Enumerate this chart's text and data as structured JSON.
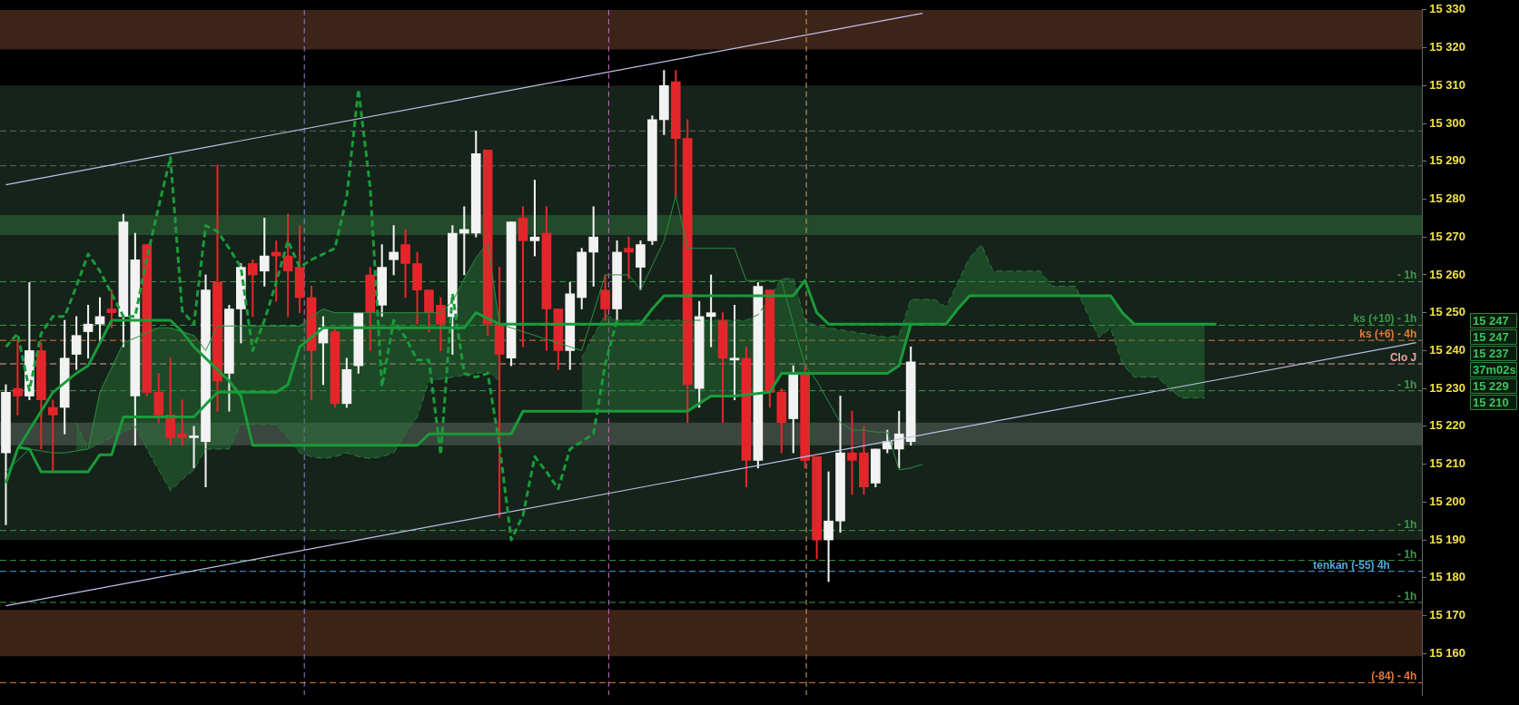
{
  "chart_data": {
    "type": "candlestick",
    "categories": [
      null,
      null,
      null,
      null,
      null,
      null,
      null,
      null,
      null,
      null,
      null,
      null,
      null,
      null,
      null,
      null,
      null,
      null,
      null,
      null,
      null,
      null,
      null,
      null,
      null,
      null,
      null,
      null,
      null,
      null,
      null,
      null,
      null,
      null,
      null,
      null,
      null,
      null,
      null,
      null,
      null,
      null,
      null,
      null,
      null,
      null,
      null,
      null,
      null,
      null,
      null,
      null,
      null,
      null,
      null,
      null,
      null,
      null,
      null,
      null,
      null,
      null,
      null,
      null,
      null,
      null,
      null,
      null,
      null,
      null,
      null,
      null,
      null,
      null,
      null,
      null,
      null,
      null,
      null,
      null,
      null,
      null,
      null,
      null,
      null,
      null,
      null,
      null,
      null,
      null,
      null,
      null,
      null,
      null,
      null,
      null,
      null,
      null,
      null,
      null,
      null,
      null,
      null,
      null,
      null,
      null,
      null,
      null,
      null,
      null,
      null,
      null,
      null,
      null,
      null,
      null,
      null,
      null,
      null,
      null,
      null
    ],
    "ohlc": [
      [
        15213,
        15231,
        15194,
        15229
      ],
      [
        15230,
        15243,
        15223,
        15228
      ],
      [
        15228,
        15258,
        15227,
        15240
      ],
      [
        15240,
        15242,
        15214,
        15227
      ],
      [
        15225,
        15227,
        15208,
        15223
      ],
      [
        15225,
        15248,
        15218,
        15238
      ],
      [
        15239,
        15249,
        15235,
        15244
      ],
      [
        15245,
        15252,
        15238,
        15247
      ],
      [
        15247,
        15254,
        15242,
        15249
      ],
      [
        15251,
        15256,
        15246,
        15250
      ],
      [
        15249,
        15276,
        15241,
        15274
      ],
      [
        15228,
        15271,
        15215,
        15264
      ],
      [
        15268,
        15268,
        15228,
        15229
      ],
      [
        15229,
        15234,
        15221,
        15223
      ],
      [
        15223,
        15238,
        15215,
        15217
      ],
      [
        15218,
        15227,
        15215,
        15217
      ],
      [
        15217,
        15220,
        15209,
        15217.5
      ],
      [
        15216,
        15260,
        15204,
        15256
      ],
      [
        15258,
        15289,
        15224,
        15232
      ],
      [
        15234,
        15252,
        15224,
        15251
      ],
      [
        15251,
        15263,
        15242,
        15262
      ],
      [
        15263,
        15264,
        15249,
        15260
      ],
      [
        15261,
        15275,
        15257,
        15265
      ],
      [
        15266,
        15269,
        15253,
        15265
      ],
      [
        15265,
        15276,
        15249,
        15261
      ],
      [
        15262,
        15273,
        15250,
        15254
      ],
      [
        15254,
        15257,
        15227,
        15240
      ],
      [
        15242,
        15249,
        15231,
        15246
      ],
      [
        15245,
        15246,
        15225,
        15226
      ],
      [
        15226,
        15238,
        15225,
        15235
      ],
      [
        15236,
        15250,
        15234,
        15250
      ],
      [
        15260,
        15262,
        15240,
        15250
      ],
      [
        15252,
        15268,
        15249,
        15262
      ],
      [
        15264,
        15273,
        15260,
        15266
      ],
      [
        15268,
        15272,
        15254,
        15263
      ],
      [
        15263,
        15266,
        15247,
        15256
      ],
      [
        15256,
        15256,
        15245,
        15250
      ],
      [
        15252,
        15254,
        15240,
        15247
      ],
      [
        15249,
        15273,
        15239,
        15271
      ],
      [
        15271,
        15278,
        15260,
        15272
      ],
      [
        15271,
        15298,
        15270,
        15292
      ],
      [
        15293,
        15293,
        15244,
        15247
      ],
      [
        15247,
        15262,
        15196,
        15239
      ],
      [
        15238,
        15274,
        15236,
        15274
      ],
      [
        15275,
        15278,
        15241,
        15269
      ],
      [
        15269,
        15285,
        15265,
        15270
      ],
      [
        15271,
        15278,
        15240,
        15251
      ],
      [
        15251,
        15251,
        15235,
        15240
      ],
      [
        15240,
        15258,
        15235,
        15255
      ],
      [
        15254,
        15267,
        15251,
        15266
      ],
      [
        15266,
        15278,
        15257,
        15270
      ],
      [
        15256,
        15260,
        15248,
        15251
      ],
      [
        15251,
        15269,
        15248,
        15266
      ],
      [
        15267,
        15270,
        15259,
        15266
      ],
      [
        15262,
        15269,
        15256,
        15268
      ],
      [
        15269,
        15302,
        15268,
        15301
      ],
      [
        15301,
        15314,
        15297,
        15310
      ],
      [
        15311,
        15314,
        15281,
        15296
      ],
      [
        15296,
        15301,
        15221,
        15231
      ],
      [
        15230,
        15253,
        15225,
        15249
      ],
      [
        15249,
        15260,
        15241,
        15250
      ],
      [
        15248,
        15250,
        15221,
        15238
      ],
      [
        15237.5,
        15252,
        15227,
        15238
      ],
      [
        15238,
        15241,
        15204,
        15211
      ],
      [
        15211,
        15258,
        15209,
        15257
      ],
      [
        15256,
        15256,
        15225,
        15229
      ],
      [
        15229,
        15230,
        15213,
        15221
      ],
      [
        15222,
        15236,
        15213,
        15234
      ],
      [
        15234,
        15236,
        15209,
        15211
      ],
      [
        15212,
        15212,
        15185,
        15190
      ],
      [
        15190,
        15208,
        15179,
        15195
      ],
      [
        15195,
        15228,
        15192,
        15213
      ],
      [
        15213,
        15224,
        15202,
        15211
      ],
      [
        15213,
        15220,
        15202,
        15204
      ],
      [
        15205,
        15214,
        15204,
        15214
      ],
      [
        15214,
        15219,
        15213,
        15216
      ],
      [
        15214,
        15224,
        15209,
        15218
      ],
      [
        15216,
        15241,
        15215,
        15237
      ],
      null,
      null,
      null,
      null,
      null,
      null,
      null,
      null,
      null,
      null,
      null,
      null,
      null,
      null,
      null,
      null,
      null,
      null,
      null,
      null,
      null,
      null,
      null,
      null,
      null,
      null,
      null,
      null,
      null,
      null,
      null,
      null,
      null,
      null,
      null,
      null,
      null,
      null,
      null,
      null,
      null,
      null,
      null
    ],
    "colors": [
      "#f2f2f2",
      "#e3262b",
      "#f2f2f2",
      "#e3262b",
      "#e3262b",
      "#f2f2f2",
      "#f2f2f2",
      "#f2f2f2",
      "#f2f2f2",
      "#e3262b",
      "#f2f2f2",
      "#f2f2f2",
      "#e3262b",
      "#e3262b",
      "#e3262b",
      "#e3262b",
      "#f2f2f2",
      "#f2f2f2",
      "#e3262b",
      "#f2f2f2",
      "#f2f2f2",
      "#e3262b",
      "#f2f2f2",
      "#e3262b",
      "#e3262b",
      "#e3262b",
      "#e3262b",
      "#f2f2f2",
      "#e3262b",
      "#f2f2f2",
      "#f2f2f2",
      "#e3262b",
      "#f2f2f2",
      "#f2f2f2",
      "#e3262b",
      "#e3262b",
      "#e3262b",
      "#e3262b",
      "#f2f2f2",
      "#f2f2f2",
      "#f2f2f2",
      "#e3262b",
      "#e3262b",
      "#f2f2f2",
      "#e3262b",
      "#f2f2f2",
      "#e3262b",
      "#e3262b",
      "#f2f2f2",
      "#f2f2f2",
      "#f2f2f2",
      "#e3262b",
      "#f2f2f2",
      "#e3262b",
      "#f2f2f2",
      "#f2f2f2",
      "#f2f2f2",
      "#e3262b",
      "#e3262b",
      "#f2f2f2",
      "#f2f2f2",
      "#e3262b",
      "#f2f2f2",
      "#e3262b",
      "#f2f2f2",
      "#e3262b",
      "#e3262b",
      "#f2f2f2",
      "#e3262b",
      "#e3262b",
      "#f2f2f2",
      "#f2f2f2",
      "#e3262b",
      "#e3262b",
      "#f2f2f2",
      "#f2f2f2",
      "#f2f2f2",
      "#f2f2f2",
      null,
      null,
      null,
      null,
      null,
      null,
      null,
      null,
      null,
      null,
      null,
      null,
      null,
      null,
      null,
      null,
      null,
      null,
      null,
      null,
      null,
      null,
      null,
      null,
      null,
      null,
      null,
      null,
      null,
      null,
      null,
      null,
      null,
      null,
      null,
      null,
      null,
      null,
      null,
      null,
      null,
      null,
      null
    ],
    "series": [
      {
        "type": "line",
        "color": "#1a9b3a",
        "values": [
          15205,
          15214,
          15219,
          15224,
          15229,
          null,
          15234,
          15236,
          null,
          15248,
          15248,
          null,
          null,
          15248,
          15248,
          15245,
          15241,
          null,
          null,
          15232,
          15228,
          15215,
          15215,
          15215,
          15215,
          15215,
          15215,
          15215,
          15215,
          15215,
          15215,
          15215,
          15215,
          15215,
          15215,
          15215,
          15218,
          15218,
          15218,
          15218,
          15218,
          15218,
          15218,
          15218,
          15224,
          15224,
          15224,
          15224,
          15224,
          15224,
          15224,
          15224,
          15224,
          15224,
          15224,
          15224,
          15224,
          15224,
          15224,
          15226,
          15228,
          15228,
          15228,
          null,
          null,
          15229,
          15234,
          15234,
          15234,
          15234,
          15234,
          15234,
          15234,
          15234,
          15234,
          15234,
          15236,
          15247,
          15247,
          15247,
          15247,
          15251,
          15254.5,
          15254.5,
          15254.5,
          15254.5,
          15254.5,
          15254.5,
          15254.5,
          15254.5,
          15254.5,
          15254.5,
          15254.5,
          15254.5,
          15254.5,
          15250,
          15247,
          15247,
          15247,
          15247,
          15247,
          15247,
          15247,
          15247,
          null,
          null,
          null,
          null,
          null,
          null,
          null,
          null,
          null,
          null,
          null,
          null,
          null,
          null,
          null,
          null,
          null
        ]
      },
      {
        "type": "line",
        "color": "#1a9b3a",
        "values": [
          null,
          15214.5,
          15214,
          15208,
          15208,
          15208,
          15208,
          15208,
          15212.5,
          15212.5,
          15222.5,
          15222.5,
          15222.5,
          15222.5,
          null,
          15222.5,
          15222.5,
          null,
          15229,
          15229,
          15229,
          15229,
          15229,
          15229,
          15231,
          15241,
          null,
          15246,
          15246,
          15246,
          null,
          15246,
          15246,
          15246,
          15246,
          15246,
          15246,
          15246,
          15246,
          15246,
          15250,
          null,
          15247,
          null,
          15247,
          15247,
          15247,
          null,
          null,
          15247,
          15247,
          15247,
          15247,
          15247,
          15247,
          15251,
          15254.5,
          15254.5,
          null,
          15254.5,
          15254.5,
          15254.5,
          15254.5,
          15254.5,
          null,
          null,
          15254.5,
          15254.5,
          15258.5,
          15250,
          15247,
          15247,
          15247,
          15247,
          15247,
          15247,
          15247,
          15247,
          null,
          null,
          null,
          null,
          null,
          null,
          null,
          null,
          null,
          null,
          null,
          null,
          null,
          null,
          null,
          null,
          null,
          null,
          null,
          null,
          null,
          null,
          null,
          null,
          null,
          null,
          null,
          null,
          null,
          null,
          null,
          null,
          null,
          null,
          null,
          null,
          null,
          null,
          null,
          null,
          null,
          null,
          null
        ]
      },
      {
        "type": "line",
        "color": "#2d8f3f",
        "values": [
          15208,
          15211,
          15214,
          15213.5,
          15213,
          15213,
          15213.5,
          15214,
          15229,
          15235.5,
          15242,
          null,
          null,
          15246,
          15246,
          15245,
          15244,
          15240,
          15246.5,
          15246.5,
          15246.5,
          15246.5,
          15246.5,
          15246.5,
          15246.5,
          15246.5,
          15249,
          15251,
          15250,
          15250,
          15250,
          15250,
          15250,
          15250,
          15250,
          15250,
          15250,
          15250,
          15253,
          15259,
          15264.5,
          15268.5,
          15247,
          15246,
          15245,
          15244,
          15243,
          15242,
          15241,
          15240,
          15250,
          15260,
          15260,
          15260,
          15256,
          15262.5,
          15269,
          15281,
          15267,
          15267,
          15267,
          15267,
          15267,
          15258.5,
          15258.5,
          15258.5,
          15258.5,
          15247,
          15236,
          15232,
          15226.5,
          15221,
          15219,
          15219,
          15218.5,
          15218.5,
          15208.5,
          15209,
          15210,
          null,
          null,
          null,
          null,
          null,
          null,
          null,
          null,
          null,
          null,
          null,
          null,
          null,
          null,
          null,
          null,
          null,
          null,
          null,
          null,
          null,
          null,
          null,
          null,
          null,
          null,
          null,
          null,
          null,
          null,
          null,
          null,
          null,
          null,
          null,
          null,
          null,
          null,
          null,
          null,
          null,
          null
        ]
      },
      {
        "type": "line",
        "color": "#1a9b3a",
        "line_style": "dashed",
        "values": [
          15241,
          15244.5,
          15229.5,
          15244.5,
          15249,
          15249,
          15257,
          15265.5,
          15261,
          15255,
          15249,
          15249,
          15264.5,
          15278,
          15291,
          15250.5,
          15247,
          15273,
          15271.5,
          15267,
          15262,
          15240,
          15248,
          15258,
          15269,
          15262,
          15264,
          15265.5,
          15267,
          15280.5,
          15309,
          15283,
          15230.5,
          15248,
          15243.5,
          15237.5,
          15237.5,
          15212.5,
          15255,
          15234,
          15233,
          15234,
          15215,
          15190,
          15196.5,
          15212,
          15208,
          15203.5,
          15214,
          15216,
          15218,
          15236.5,
          15248,
          null,
          null,
          null,
          null,
          null,
          null,
          null,
          null,
          null,
          null,
          null,
          null,
          null,
          null,
          null,
          null,
          null,
          null,
          null,
          null,
          null,
          null,
          null,
          null,
          null,
          null,
          null,
          null,
          null,
          null,
          null,
          null,
          null,
          null,
          null,
          null,
          null,
          null,
          null,
          null,
          null,
          null,
          null,
          null,
          null,
          null,
          null,
          null,
          null,
          null,
          null,
          null,
          null,
          null,
          null,
          null,
          null,
          null,
          null,
          null,
          null,
          null,
          null,
          null,
          null,
          null,
          null,
          null
        ]
      },
      {
        "type": "line",
        "color": "#2a7a3a",
        "line_style": "dashed",
        "values": [
          null,
          null,
          null,
          null,
          null,
          null,
          15221,
          15214,
          15215.5,
          15217,
          15218.5,
          15220,
          15214,
          15208.5,
          15203,
          15206,
          15208.5,
          15214,
          15214,
          15214,
          15220.5,
          15220.5,
          15220.5,
          15220.5,
          15217,
          15213,
          15212,
          15211.5,
          15212,
          15213,
          15212,
          15211.5,
          15212,
          15213,
          15218,
          15222.5,
          15232,
          15232.5,
          15233,
          15233.5,
          15234,
          15234.5,
          15232,
          null,
          null,
          null,
          null,
          null,
          null,
          null,
          null,
          null,
          null,
          null,
          null,
          null,
          null,
          null,
          null,
          null,
          null,
          null,
          null,
          null,
          null,
          null,
          null,
          null,
          null,
          null,
          null,
          null,
          null,
          null,
          null,
          null,
          null,
          null,
          null,
          null,
          null,
          null,
          null,
          null,
          null,
          null,
          null,
          null,
          null,
          null,
          null,
          null,
          null,
          null,
          null,
          null,
          null,
          null,
          null,
          null,
          null,
          null,
          null,
          null,
          null,
          null,
          null,
          null,
          null,
          null,
          null,
          null,
          null,
          null,
          null,
          null,
          null,
          null,
          null,
          null,
          null
        ],
        "lower": [
          null,
          null,
          null,
          null,
          null,
          null,
          15221,
          15214,
          15215.5,
          15217,
          15218.5,
          15220,
          15214,
          15208.5,
          15203,
          15206,
          15208.5,
          15214,
          15214,
          15214,
          15220.5,
          15220.5,
          15220.5,
          15220.5,
          15217,
          15213,
          15212,
          15211.5,
          15212,
          15213,
          15212,
          15211.5,
          15212,
          15213,
          15218,
          15222.5,
          15232,
          15232.5,
          15233,
          15233.5,
          15234,
          15234.5,
          15232,
          null,
          null,
          null,
          null,
          null,
          null,
          null,
          null,
          null,
          null,
          null,
          null,
          null,
          null,
          null,
          null,
          null,
          null,
          null,
          null,
          null,
          null,
          null,
          null,
          null,
          null,
          null,
          null,
          null,
          null,
          null,
          null,
          null,
          null,
          null,
          null,
          null,
          null,
          null,
          null,
          null,
          null,
          null,
          null,
          null,
          null,
          null,
          null,
          null,
          null,
          null,
          null,
          null,
          null,
          null,
          null,
          null,
          null,
          null,
          null,
          null,
          null,
          null,
          null,
          null,
          null,
          null,
          null,
          null,
          null,
          null,
          null,
          null,
          null,
          null,
          null,
          null,
          null
        ],
        "upper": [
          null,
          null,
          null,
          null,
          null,
          null,
          15213.5,
          15214,
          15229,
          15235.5,
          15242,
          15244,
          15246,
          15246,
          15246,
          15245,
          15244,
          15240,
          15246.5,
          15246.5,
          15246.5,
          15246.5,
          15246.5,
          15246.5,
          15246.5,
          15246.5,
          15249,
          15251,
          15250,
          15250,
          15250,
          15250,
          15250,
          15250,
          15250,
          15250,
          15250,
          15250,
          15253,
          15259,
          15264.5,
          15268.5,
          15247,
          null,
          null,
          null,
          null,
          null,
          null,
          null,
          null,
          null,
          null,
          null,
          null,
          null,
          null,
          null,
          null,
          null,
          null,
          null,
          null,
          null,
          null,
          null,
          null,
          null,
          null,
          null,
          null,
          null,
          null,
          null,
          null,
          null,
          null,
          null,
          null,
          null,
          null,
          null,
          null,
          null,
          null,
          null,
          null,
          null,
          null,
          null,
          null,
          null,
          null,
          null,
          null,
          null,
          null,
          null,
          null,
          null,
          null,
          null,
          null,
          null,
          null,
          null,
          null,
          null,
          null,
          null,
          null,
          null,
          null,
          null,
          null,
          null,
          null,
          null,
          null,
          null,
          null
        ]
      },
      {
        "type": "line",
        "color": "#2a7a3a",
        "line_style": "dashed",
        "values": [
          null,
          null,
          null,
          null,
          null,
          null,
          null,
          null,
          null,
          null,
          null,
          null,
          null,
          null,
          null,
          null,
          null,
          null,
          null,
          null,
          null,
          null,
          null,
          null,
          null,
          null,
          null,
          null,
          null,
          null,
          null,
          null,
          null,
          null,
          null,
          null,
          null,
          null,
          null,
          null,
          null,
          null,
          null,
          null,
          null,
          null,
          null,
          null,
          null,
          15238,
          15244,
          15249.5,
          15248,
          15248,
          15248,
          15248,
          15248,
          15248,
          15248,
          15248,
          15248,
          15248,
          15248,
          15248,
          15249.5,
          15254,
          15259,
          15259,
          15248,
          15246.5,
          15246,
          15245.5,
          15245,
          15244.5,
          15244,
          15243.5,
          15244,
          15253.5,
          15253.5,
          15253.5,
          15251.5,
          15258,
          15264.5,
          15268,
          15261,
          15261,
          15261,
          15261,
          15261,
          15257,
          15257,
          15257,
          15250,
          15243.5,
          15246,
          15236.5,
          15233,
          15233,
          15233,
          15230,
          15227.5,
          15227.5,
          15227.5,
          null,
          null,
          null,
          null,
          null,
          null,
          null,
          null,
          null,
          null,
          null,
          null,
          null,
          null,
          null,
          null,
          null,
          null
        ],
        "lower": [
          null,
          null,
          null,
          null,
          null,
          null,
          null,
          null,
          null,
          null,
          null,
          null,
          null,
          null,
          null,
          null,
          null,
          null,
          null,
          null,
          null,
          null,
          null,
          null,
          null,
          null,
          null,
          null,
          null,
          null,
          null,
          null,
          null,
          null,
          null,
          null,
          null,
          null,
          null,
          null,
          null,
          null,
          null,
          null,
          null,
          null,
          null,
          null,
          null,
          15224,
          15224,
          15224,
          15224,
          15224,
          15224,
          15224,
          15224,
          15224,
          15224,
          15226,
          15228,
          15228,
          15228,
          15228,
          15228,
          15229,
          15234,
          15234,
          15234,
          15234,
          15234,
          15234,
          15234,
          15234,
          15234,
          15234,
          15236,
          15247,
          15247,
          15247,
          15247,
          15251,
          15254.5,
          15254.5,
          15254.5,
          15254.5,
          15254.5,
          15254.5,
          15254.5,
          15254.5,
          15254.5,
          15254.5,
          15254.5,
          15254.5,
          15254.5,
          15250,
          15247,
          15247,
          15247,
          15247,
          15247,
          15247,
          15247,
          null,
          null,
          null,
          null,
          null,
          null,
          null,
          null,
          null,
          null,
          null,
          null,
          null,
          null,
          null,
          null,
          null,
          null
        ],
        "upper": [
          null,
          null,
          null,
          null,
          null,
          null,
          null,
          null,
          null,
          null,
          null,
          null,
          null,
          null,
          null,
          null,
          null,
          null,
          null,
          null,
          null,
          null,
          null,
          null,
          null,
          null,
          null,
          null,
          null,
          null,
          null,
          null,
          null,
          null,
          null,
          null,
          null,
          null,
          null,
          null,
          null,
          null,
          null,
          null,
          null,
          null,
          null,
          null,
          null,
          15238,
          15244,
          15249.5,
          15248,
          15248,
          15248,
          15248,
          15248,
          15248,
          15248,
          15248,
          15248,
          15248,
          15248,
          15248,
          15249.5,
          15254,
          15259,
          15259,
          15248,
          15246.5,
          15246,
          15245.5,
          15245,
          15244.5,
          15244,
          15243.5,
          15244,
          15253.5,
          15253.5,
          15253.5,
          15251.5,
          15258,
          15264.5,
          15268,
          15261,
          15261,
          15261,
          15261,
          15261,
          15257,
          15257,
          15257,
          15250,
          15243.5,
          15246,
          15236.5,
          15233,
          15233,
          15233,
          15230,
          15227.5,
          15227.5,
          15227.5,
          null,
          null,
          null,
          null,
          null,
          null,
          null,
          null,
          null,
          null,
          null,
          null,
          null,
          null,
          null,
          null,
          null,
          null
        ]
      },
      {
        "type": "line",
        "color": "#c0c0e8",
        "values": [
          15283.8,
          null,
          null,
          null,
          null,
          null,
          null,
          null,
          null,
          null,
          null,
          null,
          null,
          null,
          null,
          null,
          null,
          null,
          null,
          null,
          null,
          null,
          null,
          null,
          null,
          null,
          null,
          null,
          null,
          null,
          null,
          null,
          null,
          null,
          null,
          null,
          null,
          null,
          null,
          null,
          null,
          null,
          null,
          null,
          null,
          null,
          null,
          null,
          null,
          null,
          null,
          null,
          null,
          null,
          null,
          null,
          null,
          null,
          null,
          null,
          null,
          null,
          null,
          null,
          null,
          null,
          null,
          null,
          null,
          null,
          null,
          null,
          null,
          null,
          null,
          null,
          null,
          null,
          15329.1,
          null,
          null,
          null,
          null,
          null,
          null,
          null,
          null,
          null,
          null,
          null,
          null,
          null,
          null,
          null,
          null,
          null,
          null,
          null,
          null,
          null,
          null,
          null,
          null,
          null,
          null,
          null,
          null,
          null,
          null,
          null,
          null,
          null,
          null,
          null,
          null,
          null,
          null,
          null,
          null,
          null,
          null
        ]
      },
      {
        "type": "line",
        "color": "#c0c0e8",
        "values": [
          15172.6,
          null,
          null,
          null,
          null,
          null,
          null,
          null,
          null,
          null,
          null,
          null,
          null,
          null,
          null,
          null,
          null,
          null,
          null,
          null,
          null,
          null,
          null,
          null,
          null,
          null,
          null,
          null,
          null,
          null,
          null,
          null,
          null,
          null,
          null,
          null,
          null,
          null,
          null,
          null,
          null,
          null,
          null,
          null,
          null,
          null,
          null,
          null,
          null,
          null,
          null,
          null,
          null,
          null,
          null,
          null,
          null,
          null,
          null,
          null,
          null,
          null,
          null,
          null,
          null,
          null,
          null,
          null,
          null,
          null,
          null,
          null,
          null,
          null,
          null,
          null,
          null,
          null,
          null,
          null,
          null,
          null,
          null,
          null,
          null,
          null,
          null,
          null,
          null,
          null,
          null,
          null,
          null,
          null,
          null,
          null,
          null,
          null,
          null,
          null,
          null,
          null,
          null,
          null,
          null,
          null,
          null,
          null,
          null,
          null,
          null,
          null,
          null,
          null,
          null,
          null,
          null,
          null,
          null,
          null,
          15242.1
        ]
      }
    ],
    "ylim": [
      15149,
      15330
    ],
    "yticks": [
      15160,
      15170,
      15180,
      15190,
      15200,
      15210,
      15220,
      15230,
      15240,
      15250,
      15260,
      15270,
      15280,
      15290,
      15300,
      15310,
      15320,
      15330
    ],
    "tick_labels": "y",
    "bands": [
      {
        "axis": "y",
        "from": 15319.5,
        "to": 15330,
        "color": "#3d2418"
      },
      {
        "axis": "y",
        "from": 15159.3,
        "to": 15171.5,
        "color": "#3d2216"
      },
      {
        "axis": "y",
        "from": 15190,
        "to": 15310,
        "color": "#15231a"
      },
      {
        "axis": "y",
        "from": 15270.5,
        "to": 15275.8,
        "color": "#234a2a"
      },
      {
        "axis": "y",
        "from": 15215,
        "to": 15221,
        "color": "#3a463e"
      }
    ],
    "ref_lines": [
      {
        "axis": "y",
        "value": 15298,
        "color": "#666666",
        "line_style": "dashed"
      },
      {
        "axis": "y",
        "value": 15288.8,
        "color": "#666666",
        "line_style": "dashed"
      },
      {
        "axis": "y",
        "value": 15258.2,
        "label": "- 1h",
        "color": "#3a9a48",
        "line_style": "dashed"
      },
      {
        "axis": "y",
        "value": 15246.7,
        "label": "ks (+10) - 1h",
        "color": "#3a9a48",
        "line_style": "dashed"
      },
      {
        "axis": "y",
        "value": 15242.7,
        "label": "ks (+6) - 4h",
        "color": "#e07b39",
        "line_style": "dashed"
      },
      {
        "axis": "y",
        "value": 15236.5,
        "label": "Clo J",
        "color": "#f0a0a0",
        "line_style": "dashed"
      },
      {
        "axis": "y",
        "value": 15229.4,
        "label": "- 1h",
        "color": "#3a9a48",
        "line_style": "dashed"
      },
      {
        "axis": "y",
        "value": 15192.5,
        "label": "- 1h",
        "color": "#3a9a48",
        "line_style": "dashed"
      },
      {
        "axis": "y",
        "value": 15184.6,
        "label": "- 1h",
        "color": "#3a9a48",
        "line_style": "dashed"
      },
      {
        "axis": "y",
        "value": 15181.7,
        "label": "tenkan (-55) 4h",
        "color": "#4fa8e0",
        "line_style": "dashed"
      },
      {
        "axis": "y",
        "value": 15173.5,
        "label": "- 1h",
        "color": "#3a9a48",
        "line_style": "dashed"
      },
      {
        "axis": "y",
        "value": 15152.3,
        "label": "(-84) - 4h",
        "color": "#e07b39",
        "line_style": "dashed"
      }
    ],
    "annotations": [
      "15 247",
      "15 247",
      "15 237",
      "37m02s",
      "15 229",
      "15 210"
    ]
  }
}
